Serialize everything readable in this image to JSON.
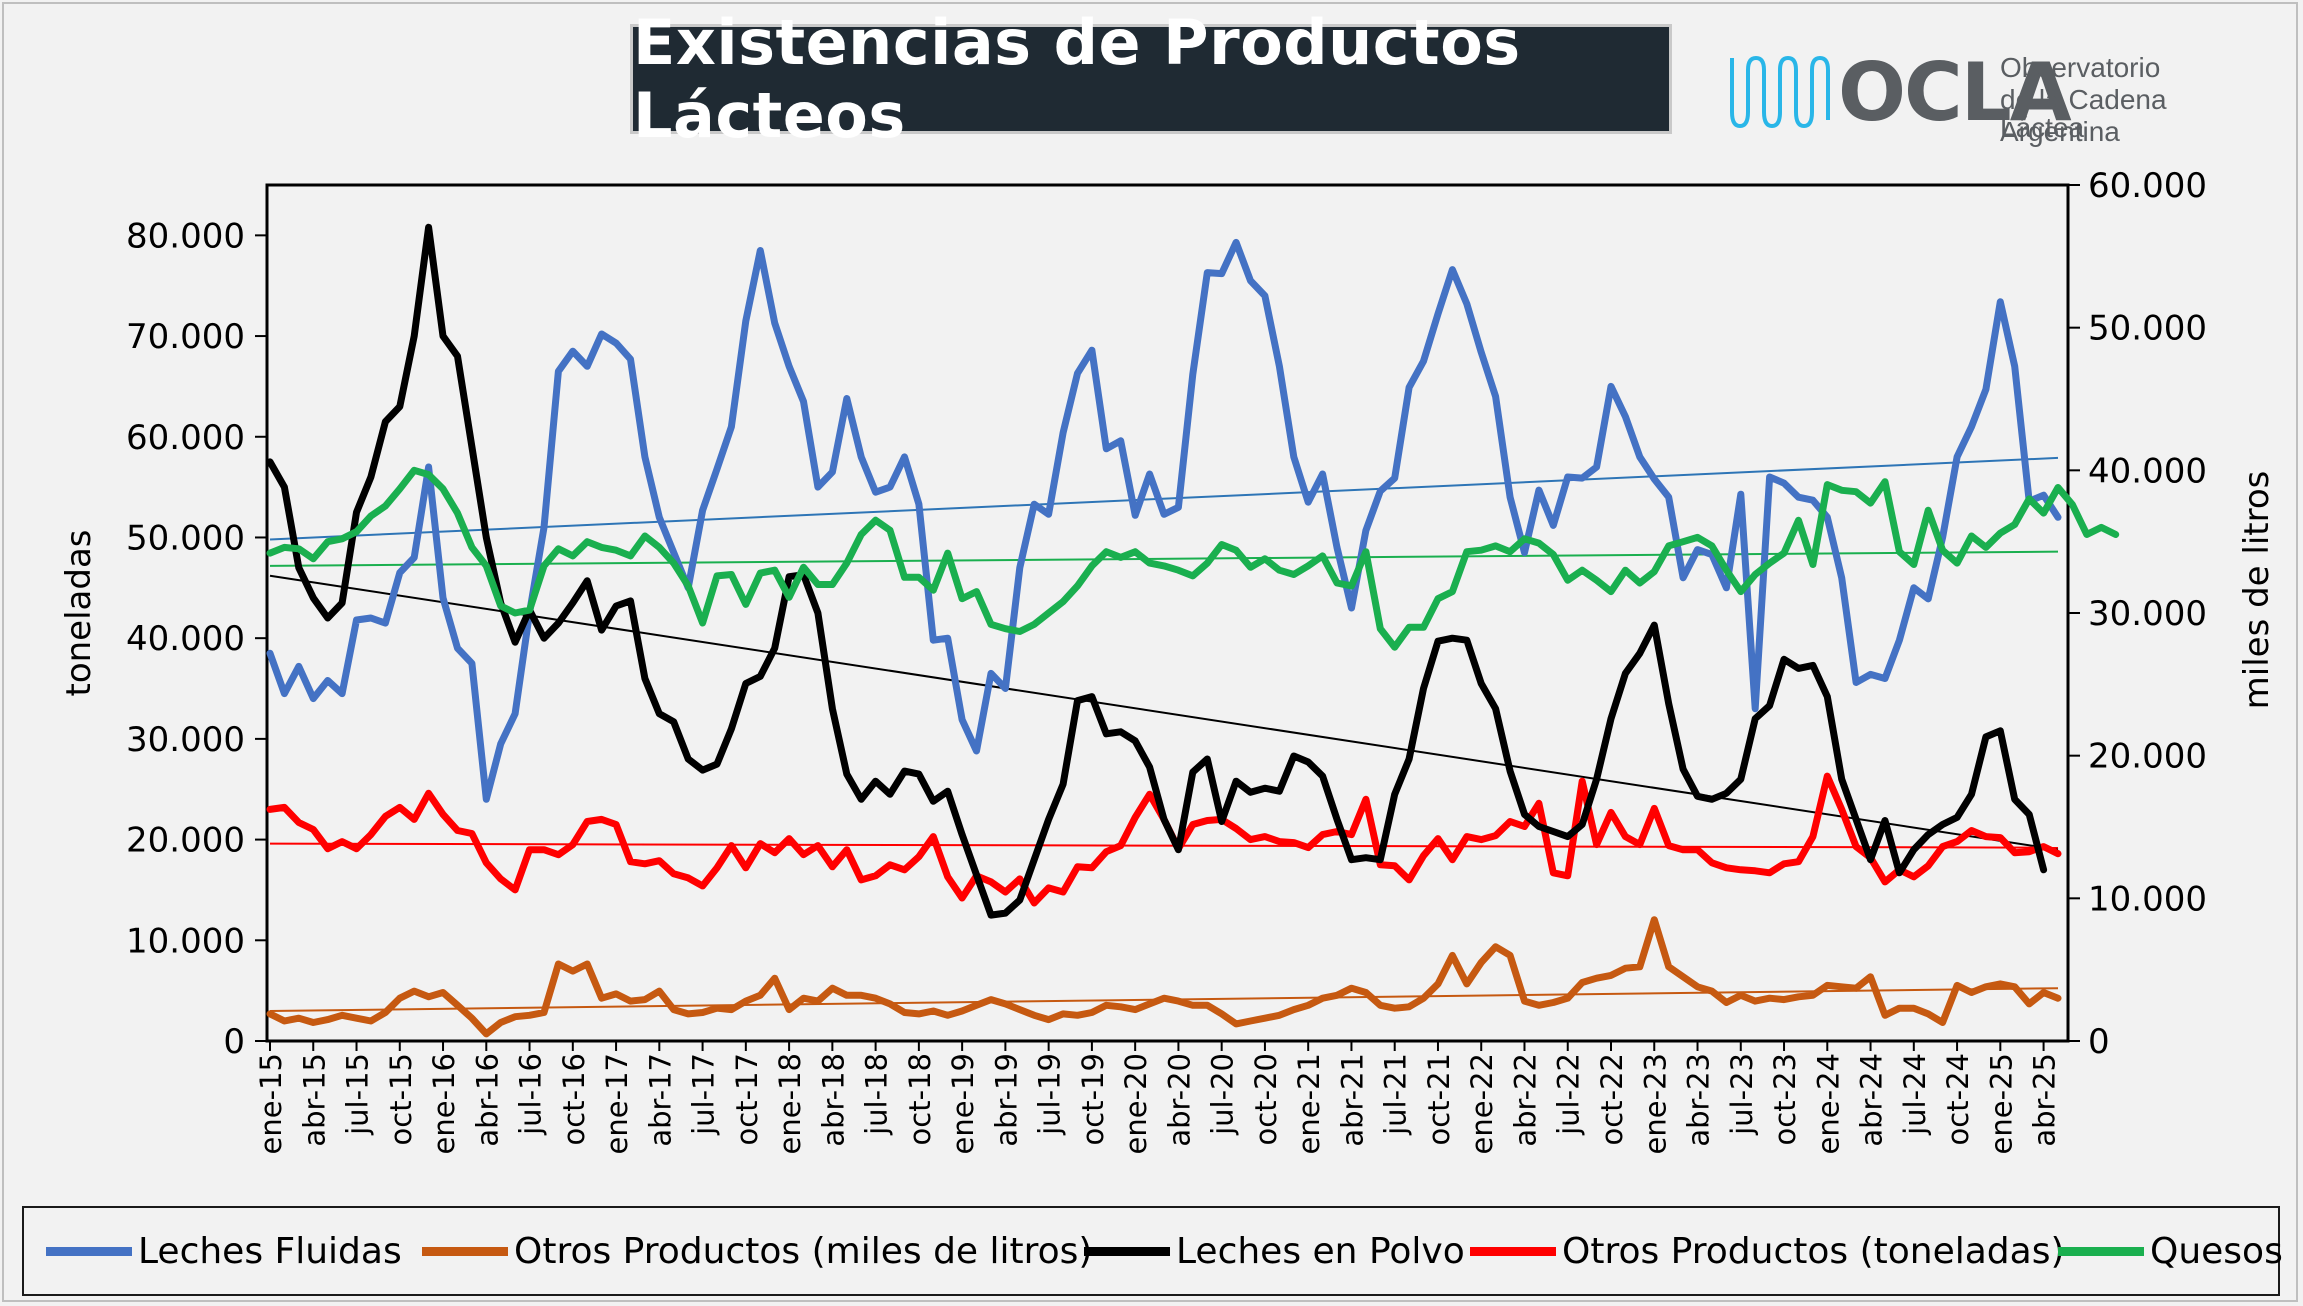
{
  "title": "Existencias de Productos Lácteos",
  "logo": {
    "word": "OCLA",
    "line1": "Observatorio",
    "line2": "de la Cadena Láctea",
    "line3": "Argentina",
    "color": "#5a5e62",
    "accent": "#29b6e8"
  },
  "chart_data": {
    "type": "line",
    "xlabel": "",
    "ylabel": "toneladas",
    "y2label": "miles de litros",
    "ylim": [
      0,
      85000
    ],
    "y2lim": [
      0,
      60000
    ],
    "yticks": [
      "0",
      "10.000",
      "20.000",
      "30.000",
      "40.000",
      "50.000",
      "60.000",
      "70.000",
      "80.000"
    ],
    "y2ticks": [
      "0",
      "10.000",
      "20.000",
      "30.000",
      "40.000",
      "50.000",
      "60.000"
    ],
    "x_tick_labels": [
      "ene-15",
      "abr-15",
      "jul-15",
      "oct-15",
      "ene-16",
      "abr-16",
      "jul-16",
      "oct-16",
      "ene-17",
      "abr-17",
      "jul-17",
      "oct-17",
      "ene-18",
      "abr-18",
      "jul-18",
      "oct-18",
      "ene-19",
      "abr-19",
      "jul-19",
      "oct-19",
      "ene-20",
      "abr-20",
      "jul-20",
      "oct-20",
      "ene-21",
      "abr-21",
      "jul-21",
      "oct-21",
      "ene-22",
      "abr-22",
      "jul-22",
      "oct-22",
      "ene-23",
      "abr-23",
      "jul-23",
      "oct-23",
      "ene-24",
      "abr-24",
      "jul-24",
      "oct-24",
      "ene-25",
      "abr-25"
    ],
    "legend_position": "bottom",
    "grid": false,
    "series": [
      {
        "name": "Leches Fluidas",
        "axis": "left",
        "color": "#4472c4",
        "values": [
          38500,
          34500,
          37200,
          34000,
          35800,
          34500,
          41800,
          42000,
          41500,
          46500,
          48000,
          57000,
          44000,
          39000,
          37500,
          24000,
          29500,
          32500,
          42500,
          51000,
          66500,
          68500,
          67000,
          70200,
          69300,
          67700,
          58000,
          52000,
          48500,
          45000,
          52700,
          56800,
          61000,
          71500,
          78500,
          71300,
          67000,
          63500,
          55000,
          56500,
          63800,
          58000,
          54500,
          55000,
          58000,
          53300,
          39800,
          40000,
          31900,
          28800,
          36500,
          35000,
          47000,
          53300,
          52300,
          60400,
          66300,
          68600,
          58800,
          59600,
          52200,
          56300,
          52300,
          53000,
          66200,
          76300,
          76200,
          79300,
          75500,
          74000,
          67000,
          58000,
          53500,
          56300,
          49000,
          43000,
          50700,
          54600,
          55900,
          64900,
          67500,
          72200,
          76600,
          73200,
          68400,
          64000,
          54000,
          48500,
          54700,
          51200,
          56000,
          55900,
          57000,
          65000,
          62000,
          58000,
          55800,
          54000,
          46000,
          48800,
          48300,
          45000,
          54300,
          33000,
          56000,
          55400,
          54000,
          53700,
          52000,
          46000,
          35600,
          36400,
          36000,
          39800,
          45000,
          43900,
          50000,
          58000,
          61000,
          64700,
          73400,
          67000,
          53600,
          54200,
          52000
        ]
      },
      {
        "name": "Otros Productos (miles de litros)",
        "axis": "right",
        "color": "#c65911",
        "values": [
          1900,
          1400,
          1600,
          1300,
          1500,
          1800,
          1600,
          1400,
          2000,
          3000,
          3500,
          3100,
          3400,
          2500,
          1600,
          500,
          1300,
          1700,
          1800,
          2000,
          5400,
          4900,
          5400,
          3000,
          3300,
          2800,
          2900,
          3500,
          2200,
          1900,
          2000,
          2300,
          2200,
          2800,
          3200,
          4400,
          2200,
          3000,
          2800,
          3700,
          3200,
          3200,
          3000,
          2600,
          2000,
          1900,
          2100,
          1800,
          2100,
          2500,
          2900,
          2600,
          2200,
          1800,
          1500,
          1900,
          1800,
          2000,
          2500,
          2400,
          2200,
          2600,
          3000,
          2800,
          2500,
          2500,
          1900,
          1200,
          1400,
          1600,
          1800,
          2200,
          2500,
          3000,
          3200,
          3700,
          3400,
          2500,
          2300,
          2400,
          3000,
          4000,
          6000,
          4000,
          5500,
          6600,
          6000,
          2800,
          2500,
          2700,
          3000,
          4100,
          4400,
          4600,
          5100,
          5200,
          8500,
          5200,
          4500,
          3800,
          3500,
          2700,
          3200,
          2800,
          3000,
          2900,
          3100,
          3200,
          3900,
          3800,
          3700,
          4500,
          1800,
          2300,
          2300,
          1900,
          1300,
          3900,
          3400,
          3800,
          4000,
          3800,
          2600,
          3400,
          3000
        ]
      },
      {
        "name": "Leches en Polvo",
        "axis": "left",
        "color": "#000000",
        "values": [
          57500,
          55000,
          47000,
          44000,
          42000,
          43500,
          52500,
          56000,
          61500,
          63000,
          70000,
          80800,
          70000,
          68000,
          59000,
          50000,
          43500,
          39600,
          42800,
          40000,
          41500,
          43500,
          45700,
          40800,
          43200,
          43700,
          36000,
          32500,
          31700,
          28000,
          26900,
          27500,
          31000,
          35500,
          36200,
          39000,
          46100,
          46300,
          42500,
          33000,
          26500,
          24000,
          25800,
          24500,
          26800,
          26500,
          23800,
          24800,
          20500,
          16500,
          12500,
          12700,
          14000,
          18000,
          22000,
          25500,
          33800,
          34200,
          30500,
          30700,
          29800,
          27200,
          22000,
          19000,
          26700,
          28000,
          21800,
          25800,
          24700,
          25100,
          24800,
          28300,
          27700,
          26300,
          22000,
          18000,
          18200,
          18000,
          24500,
          28000,
          35000,
          39700,
          40000,
          39800,
          35500,
          33000,
          26800,
          22500,
          21300,
          20800,
          20300,
          21500,
          26000,
          32000,
          36500,
          38500,
          41300,
          33500,
          27000,
          24300,
          24000,
          24600,
          26000,
          32000,
          33300,
          37900,
          37000,
          37300,
          34200,
          26000,
          22000,
          18000,
          21900,
          16700,
          19000,
          20500,
          21500,
          22200,
          24500,
          30200,
          30800,
          24000,
          22500,
          17000
        ]
      },
      {
        "name": "Otros Productos (toneladas)",
        "axis": "left",
        "color": "#ff0000",
        "values": [
          23000,
          23200,
          21700,
          21000,
          19100,
          19800,
          19100,
          20500,
          22300,
          23200,
          22000,
          24600,
          22500,
          20900,
          20600,
          17700,
          16100,
          15000,
          19000,
          19000,
          18500,
          19500,
          21800,
          22000,
          21500,
          17800,
          17600,
          17900,
          16600,
          16200,
          15400,
          17200,
          19400,
          17200,
          19600,
          18700,
          20100,
          18500,
          19400,
          17300,
          19000,
          16000,
          16400,
          17500,
          17000,
          18300,
          20300,
          16300,
          14200,
          16400,
          15800,
          14800,
          16100,
          13700,
          15200,
          14800,
          17300,
          17200,
          18800,
          19400,
          22200,
          24500,
          22000,
          19100,
          21500,
          21900,
          22000,
          21100,
          20000,
          20300,
          19800,
          19700,
          19200,
          20500,
          20800,
          20500,
          24000,
          17500,
          17400,
          16000,
          18400,
          20100,
          18000,
          20300,
          20000,
          20400,
          21800,
          21300,
          23600,
          16700,
          16400,
          25800,
          19500,
          22700,
          20300,
          19500,
          23100,
          19400,
          19000,
          19000,
          17700,
          17200,
          17000,
          16900,
          16700,
          17600,
          17800,
          20300,
          26300,
          23000,
          19300,
          18200,
          15800,
          17000,
          16300,
          17400,
          19300,
          19800,
          20900,
          20300,
          20200,
          18700,
          18800,
          19300,
          18600
        ]
      },
      {
        "name": "Quesos",
        "axis": "right",
        "color": "#1aaf4f",
        "values": [
          34200,
          34600,
          34500,
          33800,
          35000,
          35200,
          35700,
          36800,
          37500,
          38700,
          40000,
          39700,
          38700,
          37000,
          34600,
          33300,
          30500,
          30000,
          30200,
          33300,
          34500,
          34000,
          35000,
          34600,
          34400,
          34000,
          35400,
          34600,
          33500,
          31900,
          29300,
          32600,
          32700,
          30600,
          32800,
          33000,
          31100,
          33200,
          32000,
          32000,
          33500,
          35500,
          36500,
          35800,
          32500,
          32500,
          31600,
          34200,
          31000,
          31500,
          29200,
          28900,
          28700,
          29200,
          30000,
          30800,
          31900,
          33300,
          34300,
          33900,
          34300,
          33500,
          33300,
          33000,
          32600,
          33500,
          34800,
          34400,
          33200,
          33800,
          33000,
          32700,
          33300,
          34000,
          32100,
          31900,
          34300,
          28900,
          27600,
          29000,
          29000,
          31000,
          31500,
          34300,
          34400,
          34700,
          34300,
          35200,
          34900,
          34100,
          32300,
          33000,
          32300,
          31500,
          33000,
          32100,
          32900,
          34700,
          35000,
          35300,
          34700,
          33000,
          31500,
          32700,
          33500,
          34200,
          36500,
          33400,
          39000,
          38600,
          38500,
          37700,
          39200,
          34300,
          33400,
          37200,
          34400,
          33500,
          35400,
          34600,
          35600,
          36200,
          38000,
          37000,
          38800,
          37600,
          35500,
          36000,
          35500
        ]
      }
    ],
    "trendlines": [
      {
        "series": "Leches Fluidas",
        "axis": "left",
        "from": 49800,
        "to": 57900,
        "color": "#2e75b6"
      },
      {
        "series": "Leches en Polvo",
        "axis": "left",
        "from": 46200,
        "to": 19000,
        "color": "#000000"
      },
      {
        "series": "Otros Productos (toneladas)",
        "axis": "left",
        "from": 19600,
        "to": 19200,
        "color": "#ff0000"
      },
      {
        "series": "Quesos",
        "axis": "right",
        "from": 33300,
        "to": 34300,
        "color": "#1aaf4f"
      },
      {
        "series": "Otros Productos (miles de litros)",
        "axis": "right",
        "from": 2100,
        "to": 3700,
        "color": "#c65911"
      }
    ]
  }
}
